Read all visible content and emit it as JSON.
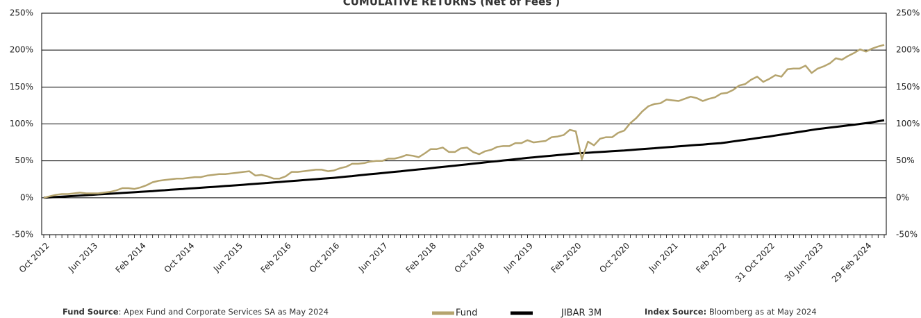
{
  "chart_data": {
    "type": "line",
    "title": "CUMULATIVE RETURNS (Net of Fees )",
    "categories": [
      "Oct 2012",
      null,
      null,
      null,
      null,
      null,
      null,
      null,
      "Jun 2013",
      null,
      null,
      null,
      null,
      null,
      null,
      null,
      "Feb 2014",
      null,
      null,
      null,
      null,
      null,
      null,
      null,
      "Oct 2014",
      null,
      null,
      null,
      null,
      null,
      null,
      null,
      "Jun 2015",
      null,
      null,
      null,
      null,
      null,
      null,
      null,
      "Feb 2016",
      null,
      null,
      null,
      null,
      null,
      null,
      null,
      "Oct 2016",
      null,
      null,
      null,
      null,
      null,
      null,
      null,
      "Jun 2017",
      null,
      null,
      null,
      null,
      null,
      null,
      null,
      "Feb 2018",
      null,
      null,
      null,
      null,
      null,
      null,
      null,
      "Oct 2018",
      null,
      null,
      null,
      null,
      null,
      null,
      null,
      "Jun 2019",
      null,
      null,
      null,
      null,
      null,
      null,
      null,
      "Feb 2020",
      null,
      null,
      null,
      null,
      null,
      null,
      null,
      "Oct 2020",
      null,
      null,
      null,
      null,
      null,
      null,
      null,
      "Jun 2021",
      null,
      null,
      null,
      null,
      null,
      null,
      null,
      "Feb 2022",
      null,
      null,
      null,
      null,
      null,
      null,
      null,
      "31 Oct 2022",
      null,
      null,
      null,
      null,
      null,
      null,
      null,
      "30 Jun 2023",
      null,
      null,
      null,
      null,
      null,
      null,
      null,
      "29 Feb 2024",
      null,
      null,
      null
    ],
    "series": [
      {
        "name": "Fund",
        "color": "#b5a46e",
        "values": [
          0,
          2,
          4,
          5,
          5,
          6,
          7,
          6,
          6,
          6,
          7,
          8,
          10,
          13,
          13,
          12,
          14,
          17,
          21,
          23,
          24,
          25,
          26,
          26,
          27,
          28,
          28,
          30,
          31,
          32,
          32,
          33,
          34,
          35,
          36,
          30,
          31,
          29,
          26,
          26,
          29,
          35,
          35,
          36,
          37,
          38,
          38,
          36,
          37,
          40,
          42,
          46,
          46,
          47,
          49,
          50,
          50,
          53,
          53,
          55,
          58,
          57,
          55,
          60,
          66,
          66,
          68,
          62,
          62,
          67,
          68,
          62,
          59,
          63,
          65,
          69,
          70,
          70,
          74,
          74,
          78,
          75,
          76,
          77,
          82,
          83,
          85,
          92,
          90,
          52,
          76,
          71,
          80,
          82,
          82,
          88,
          91,
          101,
          108,
          117,
          124,
          127,
          128,
          133,
          132,
          131,
          134,
          137,
          135,
          131,
          134,
          136,
          141,
          142,
          146,
          152,
          154,
          160,
          164,
          157,
          161,
          166,
          164,
          174,
          175,
          175,
          179,
          169,
          175,
          178,
          182,
          189,
          187,
          192,
          196,
          201,
          198,
          202,
          205,
          207
        ]
      },
      {
        "name": "JIBAR 3M",
        "color": "#000000",
        "values": [
          0,
          0.5,
          1,
          1.5,
          2,
          2.5,
          3,
          3.5,
          4,
          4.5,
          5,
          5.5,
          6,
          6.5,
          7,
          7.5,
          8,
          8.6,
          9.1,
          9.7,
          10.2,
          10.8,
          11.4,
          11.9,
          12.5,
          13,
          13.6,
          14.2,
          14.7,
          15.3,
          15.9,
          16.4,
          17,
          17.6,
          18.3,
          18.9,
          19.5,
          20.1,
          20.8,
          21.4,
          22,
          22.6,
          23.3,
          23.9,
          24.5,
          25.1,
          25.8,
          26.4,
          27,
          27.8,
          28.6,
          29.4,
          30.3,
          31.1,
          31.9,
          32.7,
          33.5,
          34.3,
          35.1,
          35.9,
          36.8,
          37.6,
          38.4,
          39.2,
          40,
          40.9,
          41.8,
          42.6,
          43.5,
          44.4,
          45.3,
          46.1,
          47,
          47.9,
          48.8,
          49.6,
          50.5,
          51.4,
          52.3,
          53.1,
          54,
          54.8,
          55.5,
          56.3,
          57,
          57.8,
          58.5,
          59.3,
          60,
          60.5,
          61,
          61.5,
          62,
          62.5,
          63,
          63.5,
          64,
          64.6,
          65.3,
          65.9,
          66.5,
          67.1,
          67.8,
          68.4,
          69,
          69.6,
          70.3,
          70.9,
          71.5,
          72.1,
          72.8,
          73.4,
          74,
          75.1,
          76.3,
          77.4,
          78.5,
          79.6,
          80.8,
          81.9,
          83,
          84.3,
          85.5,
          86.8,
          88,
          89.3,
          90.5,
          91.8,
          93,
          94,
          95,
          96,
          97,
          98,
          99,
          100,
          101,
          102.3,
          103.7,
          105
        ]
      }
    ],
    "ylim": [
      -50,
      250
    ],
    "yticks": [
      {
        "value": -50,
        "label": "-50%"
      },
      {
        "value": 0,
        "label": "0%"
      },
      {
        "value": 50,
        "label": "50%"
      },
      {
        "value": 100,
        "label": "100%"
      },
      {
        "value": 150,
        "label": "150%"
      },
      {
        "value": 200,
        "label": "200%"
      },
      {
        "value": 250,
        "label": "250%"
      }
    ],
    "grid": true,
    "legend": "bottom",
    "footer": {
      "fund_source_label": "Fund Source",
      "fund_source_text": ": Apex Fund and Corporate Services SA as May 2024",
      "index_source_label": "Index Source:",
      "index_source_text": " Bloomberg as at May 2024"
    }
  }
}
